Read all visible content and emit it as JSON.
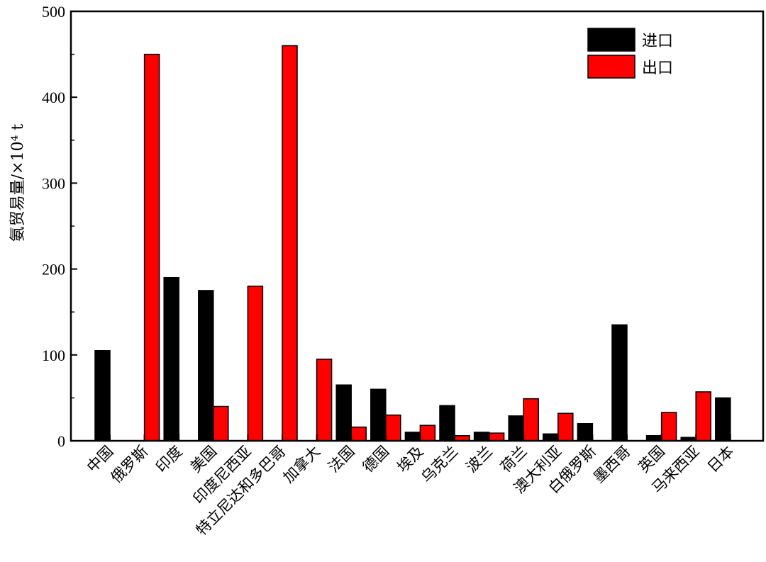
{
  "chart_data": {
    "type": "bar",
    "ylabel": "氨贸易量/×10⁴ t",
    "ylim": [
      0,
      500
    ],
    "yticks": [
      0,
      100,
      200,
      300,
      400,
      500
    ],
    "grid": false,
    "legend_position": "top-right",
    "categories": [
      "中国",
      "俄罗斯",
      "印度",
      "美国",
      "印度尼西亚",
      "特立尼达和多巴哥",
      "加拿大",
      "法国",
      "德国",
      "埃及",
      "乌克兰",
      "波兰",
      "荷兰",
      "澳大利亚",
      "白俄罗斯",
      "墨西哥",
      "英国",
      "马来西亚",
      "日本"
    ],
    "series": [
      {
        "name": "进口",
        "color": "#000000",
        "values": [
          105,
          0,
          190,
          175,
          0,
          0,
          0,
          65,
          60,
          10,
          41,
          10,
          29,
          8,
          20,
          135,
          6,
          4,
          50
        ]
      },
      {
        "name": "出口",
        "color": "#ff0000",
        "values": [
          0,
          450,
          0,
          40,
          180,
          460,
          95,
          16,
          30,
          18,
          6,
          9,
          49,
          32,
          0,
          0,
          33,
          57,
          0
        ]
      }
    ]
  }
}
